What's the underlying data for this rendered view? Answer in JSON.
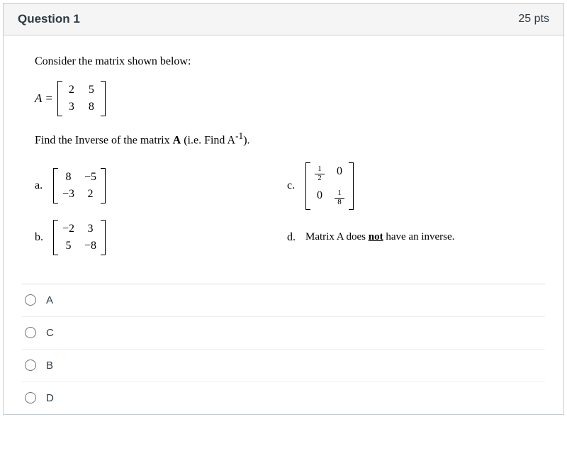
{
  "header": {
    "title": "Question 1",
    "points": "25 pts"
  },
  "prompt": "Consider the matrix shown below:",
  "matrix_def": {
    "lhs": "A =",
    "cells": [
      "2",
      "5",
      "3",
      "8"
    ]
  },
  "instruction": {
    "prefix": "Find the Inverse of the matrix ",
    "bold": "A",
    "mid": "  (i.e. Find A",
    "sup": "-1",
    "suffix": ")."
  },
  "answers": {
    "a": {
      "label": "a.",
      "cells": [
        "8",
        "−5",
        "−3",
        "2"
      ]
    },
    "b": {
      "label": "b.",
      "cells": [
        "−2",
        "3",
        "5",
        "−8"
      ]
    },
    "c": {
      "label": "c.",
      "frac1": {
        "n": "1",
        "d": "2"
      },
      "zero": "0",
      "frac2": {
        "n": "1",
        "d": "8"
      }
    },
    "d": {
      "label": "d.",
      "text_pre": "Matrix A does ",
      "text_u": "not",
      "text_post": " have an inverse."
    }
  },
  "choices": [
    {
      "id": "opt-a",
      "label": "A"
    },
    {
      "id": "opt-c",
      "label": "C"
    },
    {
      "id": "opt-b",
      "label": "B"
    },
    {
      "id": "opt-d",
      "label": "D"
    }
  ]
}
